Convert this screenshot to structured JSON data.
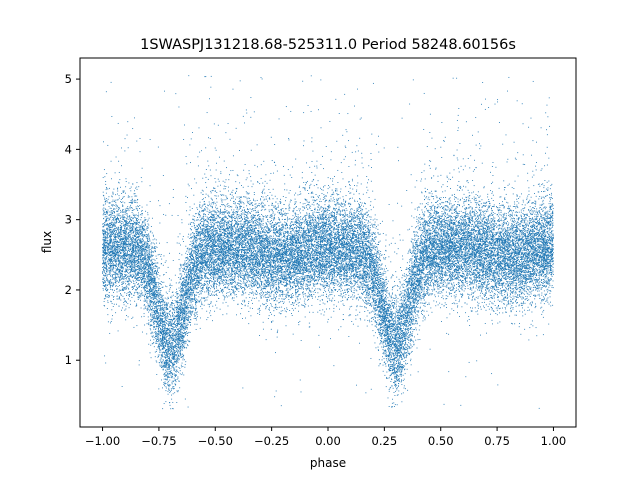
{
  "chart_data": {
    "type": "scatter",
    "title": "1SWASPJ131218.68-525311.0 Period 58248.60156s",
    "xlabel": "phase",
    "ylabel": "flux",
    "xlim": [
      -1.1,
      1.1
    ],
    "ylim": [
      0.05,
      5.3
    ],
    "x_ticks": [
      -1.0,
      -0.75,
      -0.5,
      -0.25,
      0.0,
      0.25,
      0.5,
      0.75,
      1.0
    ],
    "x_tick_labels": [
      "−1.00",
      "−0.75",
      "−0.50",
      "−0.25",
      "0.00",
      "0.25",
      "0.50",
      "0.75",
      "1.00"
    ],
    "y_ticks": [
      1,
      2,
      3,
      4,
      5
    ],
    "y_tick_labels": [
      "1",
      "2",
      "3",
      "4",
      "5"
    ],
    "grid": false,
    "legend": "none",
    "point_color": "#1f77b4",
    "series": [
      {
        "phase_range": [
          -1.0,
          1.0
        ],
        "baseline_flux": 2.6,
        "flux_scatter_sd": 0.35,
        "eclipse_minima": [
          {
            "phase": -0.7,
            "flux": 1.2,
            "halfwidth_phase": 0.1
          },
          {
            "phase": 0.3,
            "flux": 1.2,
            "halfwidth_phase": 0.1
          }
        ],
        "secondary_dip_phases": [
          -0.2,
          0.8
        ],
        "secondary_dip_flux": 2.45,
        "outlier_flux_range": [
          0.3,
          5.05
        ],
        "approx_point_count": 30000
      }
    ]
  }
}
